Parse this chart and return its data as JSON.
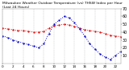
{
  "title": "Milwaukee Weather Outdoor Temperature (vs) THSW Index per Hour (Last 24 Hours)",
  "background_color": "#ffffff",
  "plot_bg_color": "#ffffff",
  "grid_color": "#aaaaaa",
  "text_color": "#000000",
  "x_hours": [
    0,
    1,
    2,
    3,
    4,
    5,
    6,
    7,
    8,
    9,
    10,
    11,
    12,
    13,
    14,
    15,
    16,
    17,
    18,
    19,
    20,
    21,
    22,
    23
  ],
  "temp_values": [
    45,
    44,
    43,
    42,
    42,
    41,
    40,
    40,
    41,
    45,
    48,
    49,
    50,
    49,
    47,
    45,
    43,
    42,
    41,
    40,
    38,
    36,
    35,
    34
  ],
  "thsw_values": [
    35,
    33,
    30,
    28,
    26,
    24,
    22,
    20,
    25,
    38,
    50,
    55,
    60,
    58,
    52,
    44,
    35,
    25,
    18,
    12,
    8,
    5,
    10,
    15
  ],
  "temp_color": "#dd0000",
  "thsw_color": "#0000cc",
  "ylim_min": 0,
  "ylim_max": 70,
  "ytick_values": [
    10,
    20,
    30,
    40,
    50,
    60,
    70
  ],
  "xtick_positions": [
    0,
    2,
    4,
    6,
    8,
    10,
    12,
    14,
    16,
    18,
    20,
    22
  ],
  "xtick_labels": [
    "0",
    "2",
    "4",
    "6",
    "8",
    "10",
    "12",
    "14",
    "16",
    "18",
    "20",
    "22"
  ],
  "ylabel_fontsize": 3.5,
  "title_fontsize": 3.2,
  "tick_fontsize": 3.0,
  "line_width": 0.7,
  "marker_size": 1.2
}
